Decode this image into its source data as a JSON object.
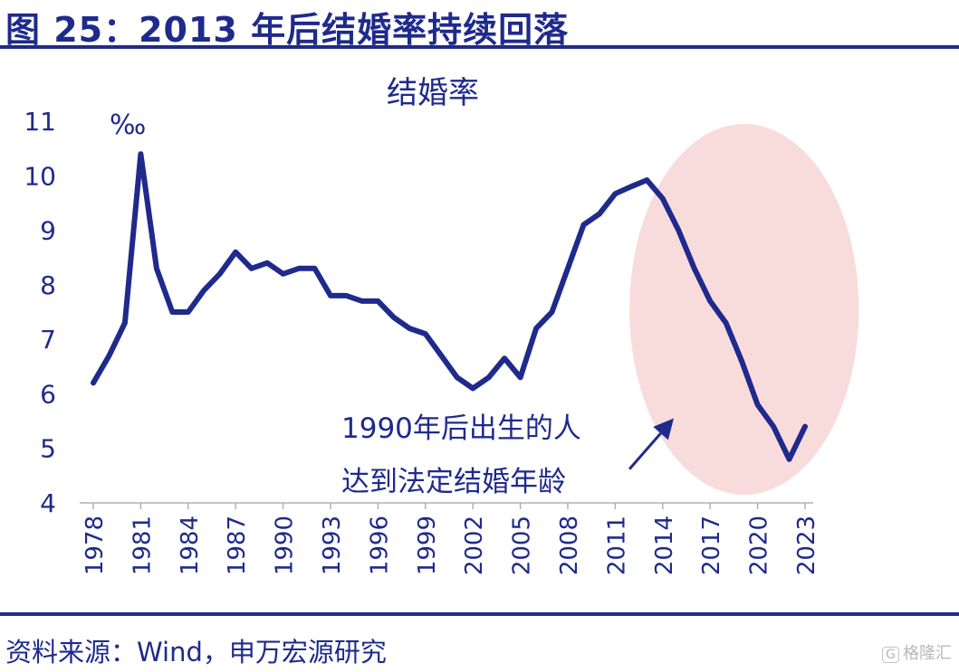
{
  "figure": {
    "title": "图 25：2013 年后结婚率持续回落",
    "source": "资料来源：Wind，申万宏源研究",
    "watermark": "格隆汇",
    "watermark_icon": "G"
  },
  "colors": {
    "line": "#1f2a8c",
    "highlight_ellipse": "#f8dcdc",
    "axis": "#b0b0b0",
    "text": "#1f2a8c"
  },
  "chart_data": {
    "type": "line",
    "title": "结婚率",
    "unit_label": "‰",
    "ylim": [
      4,
      11
    ],
    "yticks": [
      4,
      5,
      6,
      7,
      8,
      9,
      10,
      11
    ],
    "xlim": [
      1978,
      2023
    ],
    "xticks": [
      1978,
      1981,
      1984,
      1987,
      1990,
      1993,
      1996,
      1999,
      2002,
      2005,
      2008,
      2011,
      2014,
      2017,
      2020,
      2023
    ],
    "grid": false,
    "legend": "none",
    "x": [
      1978,
      1979,
      1980,
      1981,
      1982,
      1983,
      1984,
      1985,
      1986,
      1987,
      1988,
      1989,
      1990,
      1991,
      1992,
      1993,
      1994,
      1995,
      1996,
      1997,
      1998,
      1999,
      2000,
      2001,
      2002,
      2003,
      2004,
      2005,
      2006,
      2007,
      2008,
      2009,
      2010,
      2011,
      2012,
      2013,
      2014,
      2015,
      2016,
      2017,
      2018,
      2019,
      2020,
      2021,
      2022,
      2023
    ],
    "series": [
      {
        "values": [
          6.2,
          6.7,
          7.3,
          10.4,
          8.3,
          7.5,
          7.5,
          7.9,
          8.2,
          8.6,
          8.3,
          8.4,
          8.2,
          8.3,
          8.3,
          7.8,
          7.8,
          7.7,
          7.7,
          7.4,
          7.2,
          7.1,
          6.7,
          6.3,
          6.1,
          6.3,
          6.65,
          6.3,
          7.2,
          7.5,
          8.3,
          9.1,
          9.3,
          9.67,
          9.8,
          9.92,
          9.58,
          9.0,
          8.3,
          7.7,
          7.3,
          6.6,
          5.8,
          5.4,
          4.8,
          5.4
        ]
      }
    ],
    "highlight": {
      "shape": "ellipse",
      "x_range": [
        2011.9,
        2026.4
      ],
      "y_range": [
        4.15,
        10.95
      ]
    },
    "annotation": {
      "lines": [
        "1990年后出生的人",
        "达到法定结婚年龄"
      ],
      "arrow_from": [
        2011.9,
        4.62
      ],
      "arrow_to": [
        2014.7,
        5.55
      ]
    }
  }
}
